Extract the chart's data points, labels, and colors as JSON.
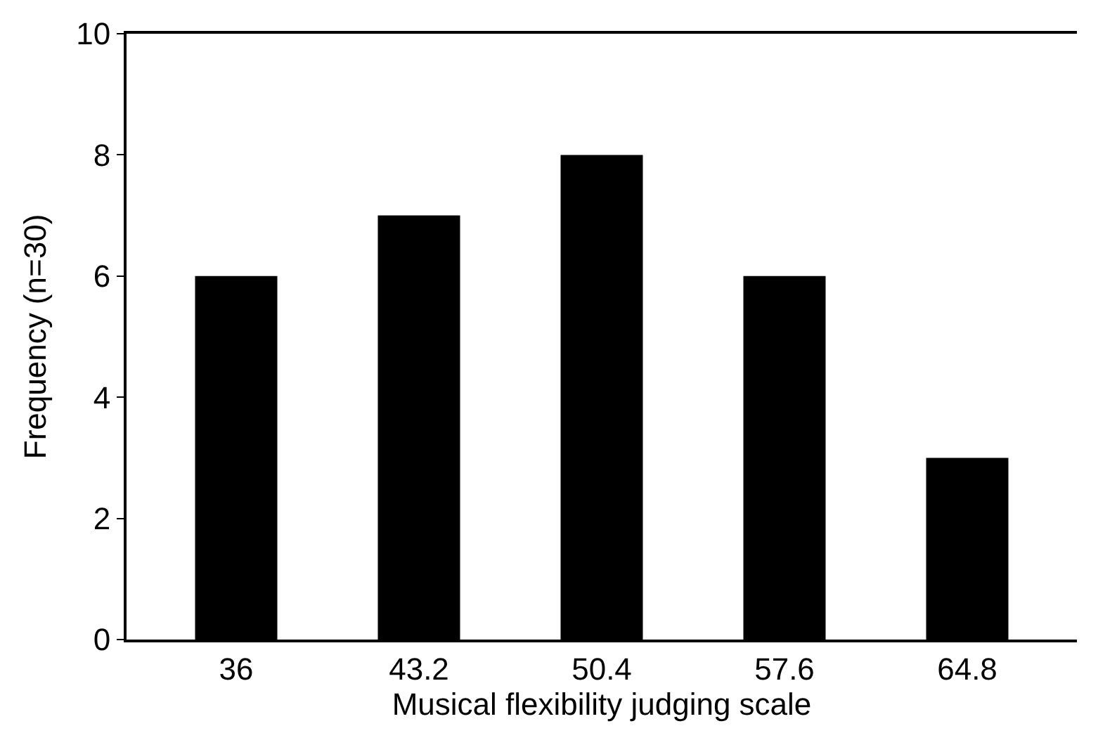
{
  "chart_data": {
    "type": "bar",
    "xlabel": "Musical flexibility judging scale",
    "ylabel": "Frequency (n=30)",
    "categories": [
      "36",
      "43.2",
      "50.4",
      "57.6",
      "64.8"
    ],
    "values": [
      6,
      7,
      8,
      6,
      3
    ],
    "color": "#000000",
    "ylim": [
      0,
      10
    ],
    "yticks": [
      0,
      2,
      4,
      6,
      8,
      10
    ],
    "grid": false,
    "legend": false
  }
}
